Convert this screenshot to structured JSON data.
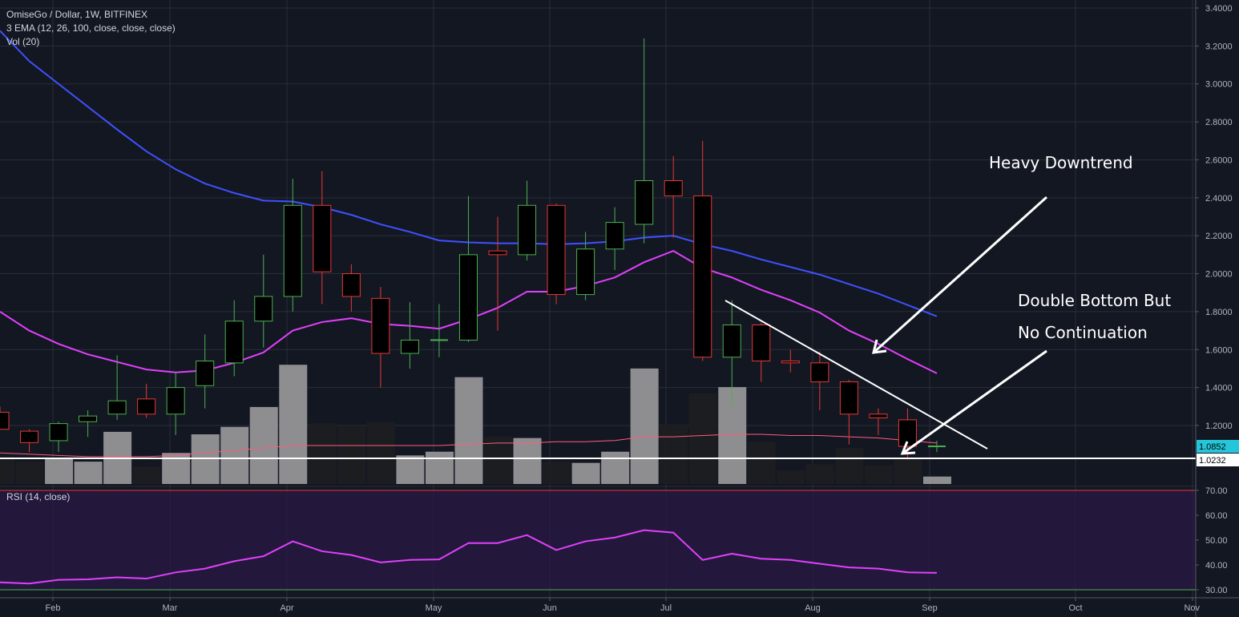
{
  "header": {
    "symbol_line": "OmiseGo / Dollar, 1W, BITFINEX",
    "ema_label": "3 EMA (12, 26, 100, close, close, close)",
    "vol_label": "Vol (20)",
    "rsi_label": "RSI (14, close)"
  },
  "annotations": {
    "downtrend": "Heavy Downtrend",
    "double_bottom_line1": "Double Bottom But",
    "double_bottom_line2": "No Continuation"
  },
  "price_tags": {
    "current": "1.0852",
    "support": "1.0232"
  },
  "colors": {
    "background": "#131722",
    "up": "#4caf50",
    "down": "#e53935",
    "ema_fast": "#e040fb",
    "ema_slow": "#3f51ff",
    "volume": "#9e9e9e",
    "rsi": "#e040fb",
    "rsi_band": "#2a1a45",
    "current_tag": "#26c6da"
  },
  "chart_data": {
    "type": "candlestick",
    "y_ticks": [
      "3.4000",
      "3.2000",
      "3.0000",
      "2.8000",
      "2.6000",
      "2.4000",
      "2.2000",
      "2.0000",
      "1.8000",
      "1.6000",
      "1.4000",
      "1.2000"
    ],
    "x_ticks": [
      "Feb",
      "Mar",
      "Apr",
      "May",
      "Jun",
      "Jul",
      "Aug",
      "Sep",
      "Oct",
      "Nov"
    ],
    "ylim": [
      0.9,
      3.4
    ],
    "candles": [
      {
        "o": 1.27,
        "h": 1.3,
        "l": 1.19,
        "c": 1.18
      },
      {
        "o": 1.17,
        "h": 1.18,
        "l": 1.06,
        "c": 1.11
      },
      {
        "o": 1.12,
        "h": 1.22,
        "l": 1.06,
        "c": 1.21
      },
      {
        "o": 1.22,
        "h": 1.28,
        "l": 1.14,
        "c": 1.25
      },
      {
        "o": 1.26,
        "h": 1.57,
        "l": 1.23,
        "c": 1.33
      },
      {
        "o": 1.34,
        "h": 1.42,
        "l": 1.24,
        "c": 1.26
      },
      {
        "o": 1.26,
        "h": 1.48,
        "l": 1.15,
        "c": 1.4
      },
      {
        "o": 1.41,
        "h": 1.68,
        "l": 1.29,
        "c": 1.54
      },
      {
        "o": 1.53,
        "h": 1.86,
        "l": 1.46,
        "c": 1.75
      },
      {
        "o": 1.75,
        "h": 2.1,
        "l": 1.61,
        "c": 1.88
      },
      {
        "o": 1.88,
        "h": 2.5,
        "l": 1.8,
        "c": 2.36
      },
      {
        "o": 2.36,
        "h": 2.54,
        "l": 1.84,
        "c": 2.01
      },
      {
        "o": 2.0,
        "h": 2.05,
        "l": 1.8,
        "c": 1.88
      },
      {
        "o": 1.87,
        "h": 1.93,
        "l": 1.4,
        "c": 1.58
      },
      {
        "o": 1.58,
        "h": 1.85,
        "l": 1.5,
        "c": 1.65
      },
      {
        "o": 1.65,
        "h": 1.84,
        "l": 1.56,
        "c": 1.65
      },
      {
        "o": 1.65,
        "h": 2.41,
        "l": 1.64,
        "c": 2.1
      },
      {
        "o": 2.12,
        "h": 2.3,
        "l": 1.7,
        "c": 2.1
      },
      {
        "o": 2.1,
        "h": 2.49,
        "l": 2.07,
        "c": 2.36
      },
      {
        "o": 2.36,
        "h": 2.37,
        "l": 1.84,
        "c": 1.89
      },
      {
        "o": 1.89,
        "h": 2.22,
        "l": 1.86,
        "c": 2.13
      },
      {
        "o": 2.13,
        "h": 2.35,
        "l": 2.02,
        "c": 2.27
      },
      {
        "o": 2.26,
        "h": 3.24,
        "l": 2.16,
        "c": 2.49
      },
      {
        "o": 2.49,
        "h": 2.62,
        "l": 2.19,
        "c": 2.41
      },
      {
        "o": 2.41,
        "h": 2.7,
        "l": 1.54,
        "c": 1.56
      },
      {
        "o": 1.56,
        "h": 1.86,
        "l": 1.3,
        "c": 1.73
      },
      {
        "o": 1.73,
        "h": 1.74,
        "l": 1.43,
        "c": 1.54
      },
      {
        "o": 1.54,
        "h": 1.6,
        "l": 1.48,
        "c": 1.53
      },
      {
        "o": 1.53,
        "h": 1.59,
        "l": 1.28,
        "c": 1.43
      },
      {
        "o": 1.43,
        "h": 1.44,
        "l": 1.1,
        "c": 1.26
      },
      {
        "o": 1.26,
        "h": 1.29,
        "l": 1.15,
        "c": 1.24
      },
      {
        "o": 1.23,
        "h": 1.29,
        "l": 1.02,
        "c": 1.09
      },
      {
        "o": 1.09,
        "h": 1.12,
        "l": 1.06,
        "c": 1.09
      }
    ],
    "ema_fast": [
      1.8,
      1.7,
      1.63,
      1.575,
      1.535,
      1.495,
      1.48,
      1.49,
      1.53,
      1.585,
      1.7,
      1.745,
      1.765,
      1.735,
      1.725,
      1.71,
      1.76,
      1.82,
      1.905,
      1.905,
      1.935,
      1.98,
      2.06,
      2.12,
      2.03,
      1.98,
      1.915,
      1.86,
      1.795,
      1.7,
      1.63,
      1.55,
      1.475
    ],
    "ema_slow": [
      3.28,
      3.12,
      3.0,
      2.88,
      2.76,
      2.645,
      2.55,
      2.475,
      2.425,
      2.385,
      2.38,
      2.35,
      2.31,
      2.26,
      2.22,
      2.175,
      2.165,
      2.16,
      2.16,
      2.155,
      2.16,
      2.17,
      2.19,
      2.2,
      2.155,
      2.12,
      2.075,
      2.035,
      1.995,
      1.945,
      1.895,
      1.835,
      1.775
    ],
    "volume": [
      0.22,
      0.18,
      0.2,
      0.18,
      0.42,
      0.14,
      0.25,
      0.4,
      0.46,
      0.62,
      0.96,
      0.49,
      0.47,
      0.5,
      0.23,
      0.26,
      0.86,
      0.38,
      0.37,
      0.18,
      0.17,
      0.26,
      0.93,
      0.48,
      0.73,
      0.78,
      0.34,
      0.11,
      0.16,
      0.29,
      0.15,
      0.2,
      0.06
    ],
    "volume_ma": [
      0.25,
      0.24,
      0.23,
      0.22,
      0.22,
      0.22,
      0.23,
      0.25,
      0.27,
      0.29,
      0.31,
      0.31,
      0.31,
      0.31,
      0.31,
      0.31,
      0.32,
      0.33,
      0.33,
      0.34,
      0.34,
      0.35,
      0.38,
      0.38,
      0.39,
      0.4,
      0.4,
      0.39,
      0.39,
      0.38,
      0.37,
      0.35,
      0.33
    ],
    "rsi_ticks": [
      "70.00",
      "60.00",
      "50.00",
      "40.00",
      "30.00"
    ],
    "rsi": [
      33,
      32.5,
      34,
      34.2,
      35,
      34.5,
      37,
      38.5,
      41.5,
      43.5,
      49.5,
      45.5,
      44,
      41,
      42,
      42.2,
      48.8,
      48.8,
      52,
      46,
      49.5,
      51,
      54,
      53,
      42,
      44.5,
      42.5,
      42,
      40.5,
      39,
      38.5,
      37,
      36.8
    ]
  }
}
